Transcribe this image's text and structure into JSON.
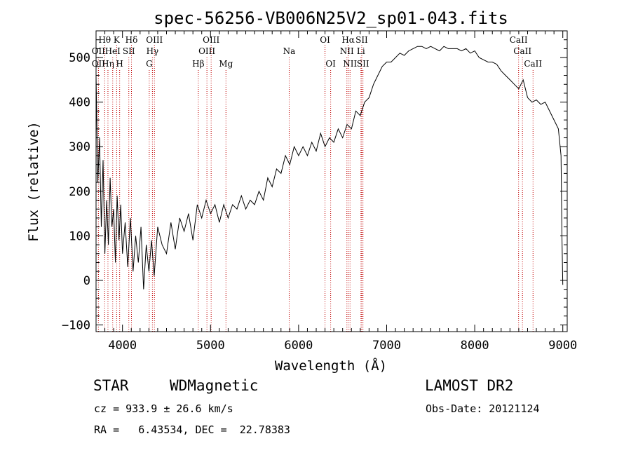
{
  "chart_data": {
    "type": "line",
    "title": "spec-56256-VB006N25V2_sp01-043.fits",
    "xlabel": "Wavelength (Å)",
    "ylabel": "Flux (relative)",
    "xlim": [
      3700,
      9050
    ],
    "ylim": [
      -115,
      560
    ],
    "xticks": [
      4000,
      5000,
      6000,
      7000,
      8000,
      9000
    ],
    "yticks": [
      -100,
      0,
      100,
      200,
      300,
      400,
      500
    ],
    "line_color": "#000000",
    "marker_color": "#c00000",
    "series": [
      {
        "x": [
          3700,
          3720,
          3740,
          3760,
          3780,
          3800,
          3820,
          3840,
          3860,
          3880,
          3900,
          3920,
          3940,
          3960,
          3980,
          4000,
          4030,
          4060,
          4090,
          4120,
          4150,
          4180,
          4210,
          4240,
          4270,
          4300,
          4330,
          4360,
          4400,
          4450,
          4500,
          4550,
          4600,
          4650,
          4700,
          4750,
          4800,
          4850,
          4900,
          4950,
          5000,
          5050,
          5100,
          5150,
          5200,
          5250,
          5300,
          5350,
          5400,
          5450,
          5500,
          5550,
          5600,
          5650,
          5700,
          5750,
          5800,
          5850,
          5900,
          5950,
          6000,
          6050,
          6100,
          6150,
          6200,
          6250,
          6300,
          6350,
          6400,
          6450,
          6500,
          6550,
          6600,
          6650,
          6700,
          6750,
          6800,
          6850,
          6900,
          6950,
          7000,
          7050,
          7100,
          7150,
          7200,
          7250,
          7300,
          7350,
          7400,
          7450,
          7500,
          7550,
          7600,
          7650,
          7700,
          7750,
          7800,
          7850,
          7900,
          7950,
          8000,
          8050,
          8100,
          8150,
          8200,
          8250,
          8300,
          8350,
          8400,
          8450,
          8500,
          8550,
          8600,
          8650,
          8700,
          8750,
          8800,
          8850,
          8900,
          8950,
          8980,
          8990,
          9000
        ],
        "y": [
          460,
          220,
          320,
          120,
          270,
          60,
          180,
          80,
          230,
          120,
          160,
          40,
          190,
          90,
          170,
          60,
          130,
          30,
          140,
          20,
          100,
          40,
          120,
          -20,
          80,
          20,
          90,
          10,
          120,
          80,
          60,
          130,
          70,
          140,
          110,
          150,
          90,
          170,
          140,
          180,
          150,
          170,
          130,
          170,
          140,
          170,
          160,
          190,
          160,
          180,
          170,
          200,
          180,
          230,
          210,
          250,
          240,
          280,
          260,
          300,
          280,
          300,
          280,
          310,
          290,
          330,
          300,
          320,
          310,
          340,
          320,
          350,
          340,
          380,
          370,
          400,
          410,
          440,
          460,
          480,
          490,
          490,
          500,
          510,
          505,
          515,
          520,
          525,
          525,
          520,
          525,
          520,
          515,
          525,
          520,
          520,
          520,
          515,
          520,
          510,
          515,
          500,
          495,
          490,
          490,
          485,
          470,
          460,
          450,
          440,
          430,
          450,
          410,
          400,
          405,
          395,
          400,
          380,
          360,
          340,
          280,
          100,
          -10
        ]
      }
    ],
    "lines": {
      "row1": [
        {
          "label": "Hθ",
          "x": 3798
        },
        {
          "label": "K",
          "x": 3934
        },
        {
          "label": "Hδ",
          "x": 4102
        },
        {
          "label": "OIII",
          "x": 4363
        },
        {
          "label": "OIII",
          "x": 5007
        },
        {
          "label": "OI",
          "x": 6300
        },
        {
          "label": "Hα",
          "x": 6563
        },
        {
          "label": "SII",
          "x": 6717
        },
        {
          "label": "CaII",
          "x": 8498
        }
      ],
      "row2": [
        {
          "label": "OII",
          "x": 3727
        },
        {
          "label": "HeI",
          "x": 3889
        },
        {
          "label": "SII",
          "x": 4072
        },
        {
          "label": "Hγ",
          "x": 4340
        },
        {
          "label": "OIII",
          "x": 4959
        },
        {
          "label": "Na",
          "x": 5893
        },
        {
          "label": "NII",
          "x": 6548
        },
        {
          "label": "Li",
          "x": 6708
        },
        {
          "label": "CaII",
          "x": 8542
        }
      ],
      "row3": [
        {
          "label": "OII",
          "x": 3727
        },
        {
          "label": "Hη",
          "x": 3835
        },
        {
          "label": "H",
          "x": 3968
        },
        {
          "label": "G",
          "x": 4304
        },
        {
          "label": "Hβ",
          "x": 4861
        },
        {
          "label": "Mg",
          "x": 5175
        },
        {
          "label": "OI",
          "x": 6364
        },
        {
          "label": "NII",
          "x": 6584
        },
        {
          "label": "SII",
          "x": 6731
        },
        {
          "label": "CaII",
          "x": 8662
        }
      ]
    }
  },
  "info": {
    "class_label": "STAR",
    "subclass_label": "WDMagnetic",
    "survey_label": "LAMOST DR2",
    "cz_text": "cz = 933.9 ± 26.6 km/s",
    "obs_date_text": "Obs-Date: 20121124",
    "coords_text": "RA =   6.43534, DEC =  22.78383"
  }
}
